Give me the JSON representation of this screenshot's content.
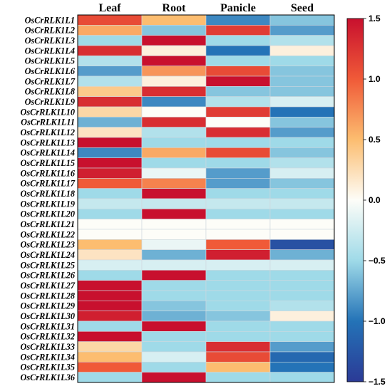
{
  "chart_data": {
    "type": "heatmap",
    "columns": [
      "Leaf",
      "Root",
      "Panicle",
      "Seed"
    ],
    "rows": [
      "OsCrRLK1L1",
      "OsCrRLK1L2",
      "OsCrRLK1L3",
      "OsCrRLK1L4",
      "OsCrRLK1L5",
      "OsCrRLK1L6",
      "OsCrRLK1L7",
      "OsCrRLK1L8",
      "OsCrRLK1L9",
      "OsCrRLK1L10",
      "OsCrRLK1L11",
      "OsCrRLK1L12",
      "OsCrRLK1L13",
      "OsCrRLK1L14",
      "OsCrRLK1L15",
      "OsCrRLK1L16",
      "OsCrRLK1L17",
      "OsCrRLK1L18",
      "OsCrRLK1L19",
      "OsCrRLK1L20",
      "OsCrRLK1L21",
      "OsCrRLK1L22",
      "OsCrRLK1L23",
      "OsCrRLK1L24",
      "OsCrRLK1L25",
      "OsCrRLK1L26",
      "OsCrRLK1L27",
      "OsCrRLK1L28",
      "OsCrRLK1L29",
      "OsCrRLK1L30",
      "OsCrRLK1L31",
      "OsCrRLK1L32",
      "OsCrRLK1L33",
      "OsCrRLK1L34",
      "OsCrRLK1L35",
      "OsCrRLK1L36"
    ],
    "values": [
      [
        1.1,
        0.5,
        -0.9,
        -0.6
      ],
      [
        0.6,
        -0.6,
        1.2,
        -0.8
      ],
      [
        -0.5,
        1.5,
        -0.5,
        -0.4
      ],
      [
        1.3,
        0.1,
        -1.0,
        0.1
      ],
      [
        -0.4,
        1.5,
        -0.5,
        -0.5
      ],
      [
        -0.8,
        0.7,
        1.1,
        -0.6
      ],
      [
        -0.4,
        0.1,
        1.5,
        -0.6
      ],
      [
        0.4,
        1.3,
        -0.6,
        -0.6
      ],
      [
        1.3,
        -0.9,
        -0.4,
        -0.2
      ],
      [
        0.3,
        0.0,
        1.2,
        -1.0
      ],
      [
        -0.7,
        1.3,
        0.0,
        -0.6
      ],
      [
        0.2,
        -0.4,
        1.3,
        -0.8
      ],
      [
        1.5,
        -0.5,
        -0.5,
        -0.5
      ],
      [
        -0.9,
        0.6,
        1.1,
        -0.6
      ],
      [
        1.5,
        -0.5,
        -0.5,
        -0.4
      ],
      [
        1.4,
        -0.1,
        -0.8,
        -0.2
      ],
      [
        1.0,
        0.8,
        -0.8,
        -0.6
      ],
      [
        -0.5,
        1.5,
        -0.5,
        -0.5
      ],
      [
        -0.3,
        -0.3,
        -0.3,
        -0.3
      ],
      [
        -0.5,
        1.5,
        -0.5,
        -0.5
      ],
      [
        0.0,
        0.0,
        0.0,
        0.0
      ],
      [
        0.0,
        0.0,
        0.0,
        0.0
      ],
      [
        0.5,
        -0.1,
        1.0,
        -1.3
      ],
      [
        0.2,
        -0.7,
        1.4,
        -0.7
      ],
      [
        -0.2,
        -0.2,
        -0.2,
        -0.2
      ],
      [
        -0.5,
        1.5,
        -0.5,
        -0.5
      ],
      [
        1.5,
        -0.5,
        -0.5,
        -0.5
      ],
      [
        1.5,
        -0.5,
        -0.5,
        -0.5
      ],
      [
        1.5,
        -0.6,
        -0.5,
        -0.4
      ],
      [
        1.4,
        -0.7,
        -0.6,
        0.1
      ],
      [
        -0.5,
        1.5,
        -0.5,
        -0.5
      ],
      [
        1.5,
        -0.5,
        -0.5,
        -0.5
      ],
      [
        0.3,
        -0.5,
        1.3,
        -0.8
      ],
      [
        0.5,
        -0.2,
        1.1,
        -1.1
      ],
      [
        1.0,
        -0.5,
        0.5,
        -1.0
      ],
      [
        -0.5,
        1.5,
        -0.5,
        -0.5
      ]
    ],
    "colorbar": {
      "min": -1.5,
      "max": 1.5,
      "ticks": [
        "1.5",
        "1.0",
        "0.5",
        "0.0",
        "−0.5",
        "−1.0",
        "−1.5"
      ]
    },
    "colors": {
      "stops": [
        [
          -1.5,
          "#2b3a96"
        ],
        [
          -1.0,
          "#2473b7"
        ],
        [
          -0.5,
          "#9fdae8"
        ],
        [
          0.0,
          "#fdfdf8"
        ],
        [
          0.5,
          "#fcbd70"
        ],
        [
          1.0,
          "#f05a38"
        ],
        [
          1.5,
          "#c8102e"
        ]
      ],
      "grid_line": "#cfd8de"
    },
    "title": "",
    "xlabel": "",
    "ylabel": ""
  }
}
